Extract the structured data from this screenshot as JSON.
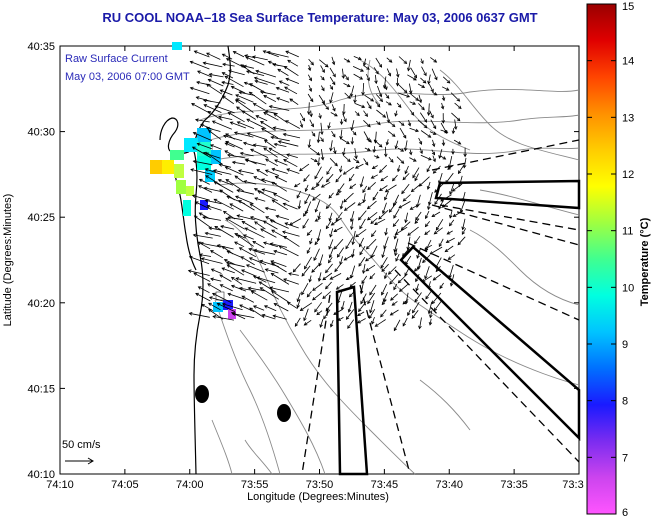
{
  "title": "RU COOL  NOAA–18  Sea Surface Temperature:  May 03, 2006 0637 GMT",
  "legend": {
    "line1": "Raw Surface Current",
    "line2": "May 03, 2006 07:00 GMT",
    "scale_label": "50 cm/s",
    "text_color": "#2a2ab8"
  },
  "axes": {
    "xlabel": "Longitude (Degrees:Minutes)",
    "ylabel": "Latitude (Degrees:Minutes)",
    "x_ticks": [
      "74:10",
      "74:05",
      "74:00",
      "73:55",
      "73:50",
      "73:45",
      "73:40",
      "73:35",
      "73:3"
    ],
    "y_ticks": [
      "40:35",
      "40:30",
      "40:25",
      "40:20",
      "40:15",
      "40:10"
    ]
  },
  "colorbar": {
    "label": "Temperature (°C)",
    "ticks": [
      "15",
      "14",
      "13",
      "12",
      "11",
      "10",
      "9",
      "8",
      "7",
      "6"
    ],
    "min": 6,
    "max": 15,
    "colors": [
      "#ff55ff",
      "#cc44ee",
      "#7b2cf0",
      "#1a1aff",
      "#0070ff",
      "#00c4ff",
      "#00ffe0",
      "#40ff90",
      "#a0ff40",
      "#ffff00",
      "#ffcc00",
      "#ff9000",
      "#ff4400",
      "#e00000",
      "#9a0000"
    ]
  },
  "colors": {
    "coast": "#000000",
    "contour": "#8a8a8a",
    "land_fill": "#ffffff"
  }
}
